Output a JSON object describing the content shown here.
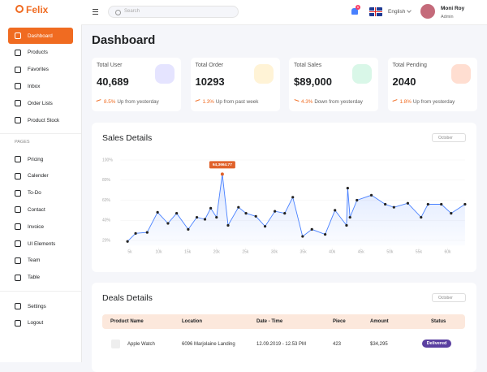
{
  "brand": "Felix",
  "search_placeholder": "Search",
  "notification_count": "6",
  "language": "English",
  "user": {
    "name": "Moni Roy",
    "role": "Admin"
  },
  "sidebar": {
    "menu": [
      "Dashboard",
      "Products",
      "Favorites",
      "Inbox",
      "Order Lists",
      "Product Stock"
    ],
    "section": "PAGES",
    "pages": [
      "Pricing",
      "Calender",
      "To-Do",
      "Contact",
      "Invoice",
      "UI Elements",
      "Team",
      "Table"
    ],
    "footer": [
      "Settings",
      "Logout"
    ]
  },
  "page_title": "Dashboard",
  "stats": [
    {
      "label": "Total User",
      "value": "40,689",
      "change": "8.5%",
      "note": "Up from yesterday"
    },
    {
      "label": "Total Order",
      "value": "10293",
      "change": "1.3%",
      "note": "Up from past week"
    },
    {
      "label": "Total Sales",
      "value": "$89,000",
      "change": "4.3%",
      "note": "Down from yesterday"
    },
    {
      "label": "Total Pending",
      "value": "2040",
      "change": "1.8%",
      "note": "Up from yesterday"
    }
  ],
  "sales_filter": "October",
  "chart_data": {
    "type": "line",
    "title": "Sales Details",
    "color": "#4880ff",
    "x": [
      4600,
      6000,
      8000,
      9800,
      11600,
      13100,
      15100,
      16600,
      18000,
      19000,
      20000,
      21000,
      22000,
      23800,
      25100,
      26800,
      28400,
      30100,
      31800,
      33200,
      34900,
      36500,
      38800,
      40500,
      42500,
      42700,
      43100,
      44300,
      46800,
      49200,
      50700,
      53100,
      55400,
      56600,
      58900,
      60600,
      63000
    ],
    "values": [
      19,
      27,
      28,
      48,
      37,
      47,
      31,
      43,
      41,
      52,
      43,
      86,
      35,
      53,
      47,
      44,
      34,
      49,
      47,
      63,
      24,
      31,
      26,
      50,
      35,
      72,
      43,
      60,
      65,
      56,
      53,
      57,
      43,
      56,
      56,
      47,
      56
    ],
    "xlim": [
      4500,
      63000
    ],
    "ylim": [
      15,
      100
    ],
    "xticks": [
      {
        "value": 5000,
        "label": "5k"
      },
      {
        "value": 10000,
        "label": "10k"
      },
      {
        "value": 15000,
        "label": "15k"
      },
      {
        "value": 20000,
        "label": "20k"
      },
      {
        "value": 25000,
        "label": "25k"
      },
      {
        "value": 30000,
        "label": "30k"
      },
      {
        "value": 35000,
        "label": "35k"
      },
      {
        "value": 40000,
        "label": "40k"
      },
      {
        "value": 45000,
        "label": "45k"
      },
      {
        "value": 50000,
        "label": "50k"
      },
      {
        "value": 55000,
        "label": "55k"
      },
      {
        "value": 60000,
        "label": "60k"
      }
    ],
    "yticks": [
      {
        "value": 20,
        "label": "20%"
      },
      {
        "value": 40,
        "label": "40%"
      },
      {
        "value": 60,
        "label": "60%"
      },
      {
        "value": 80,
        "label": "80%"
      },
      {
        "value": 100,
        "label": "100%"
      }
    ],
    "grid": true,
    "annotation": "64,3664.77"
  },
  "deals": {
    "title": "Deals Details",
    "filter": "October",
    "table": {
      "headers": [
        "Product Name",
        "Location",
        "Date - Time",
        "Piece",
        "Amount",
        "Status"
      ],
      "rows": [
        [
          "Apple Watch",
          "6096 Marjolaine Landing",
          "12.09.2019 - 12.53 PM",
          "423",
          "$34,295",
          "Delivered"
        ]
      ]
    }
  }
}
